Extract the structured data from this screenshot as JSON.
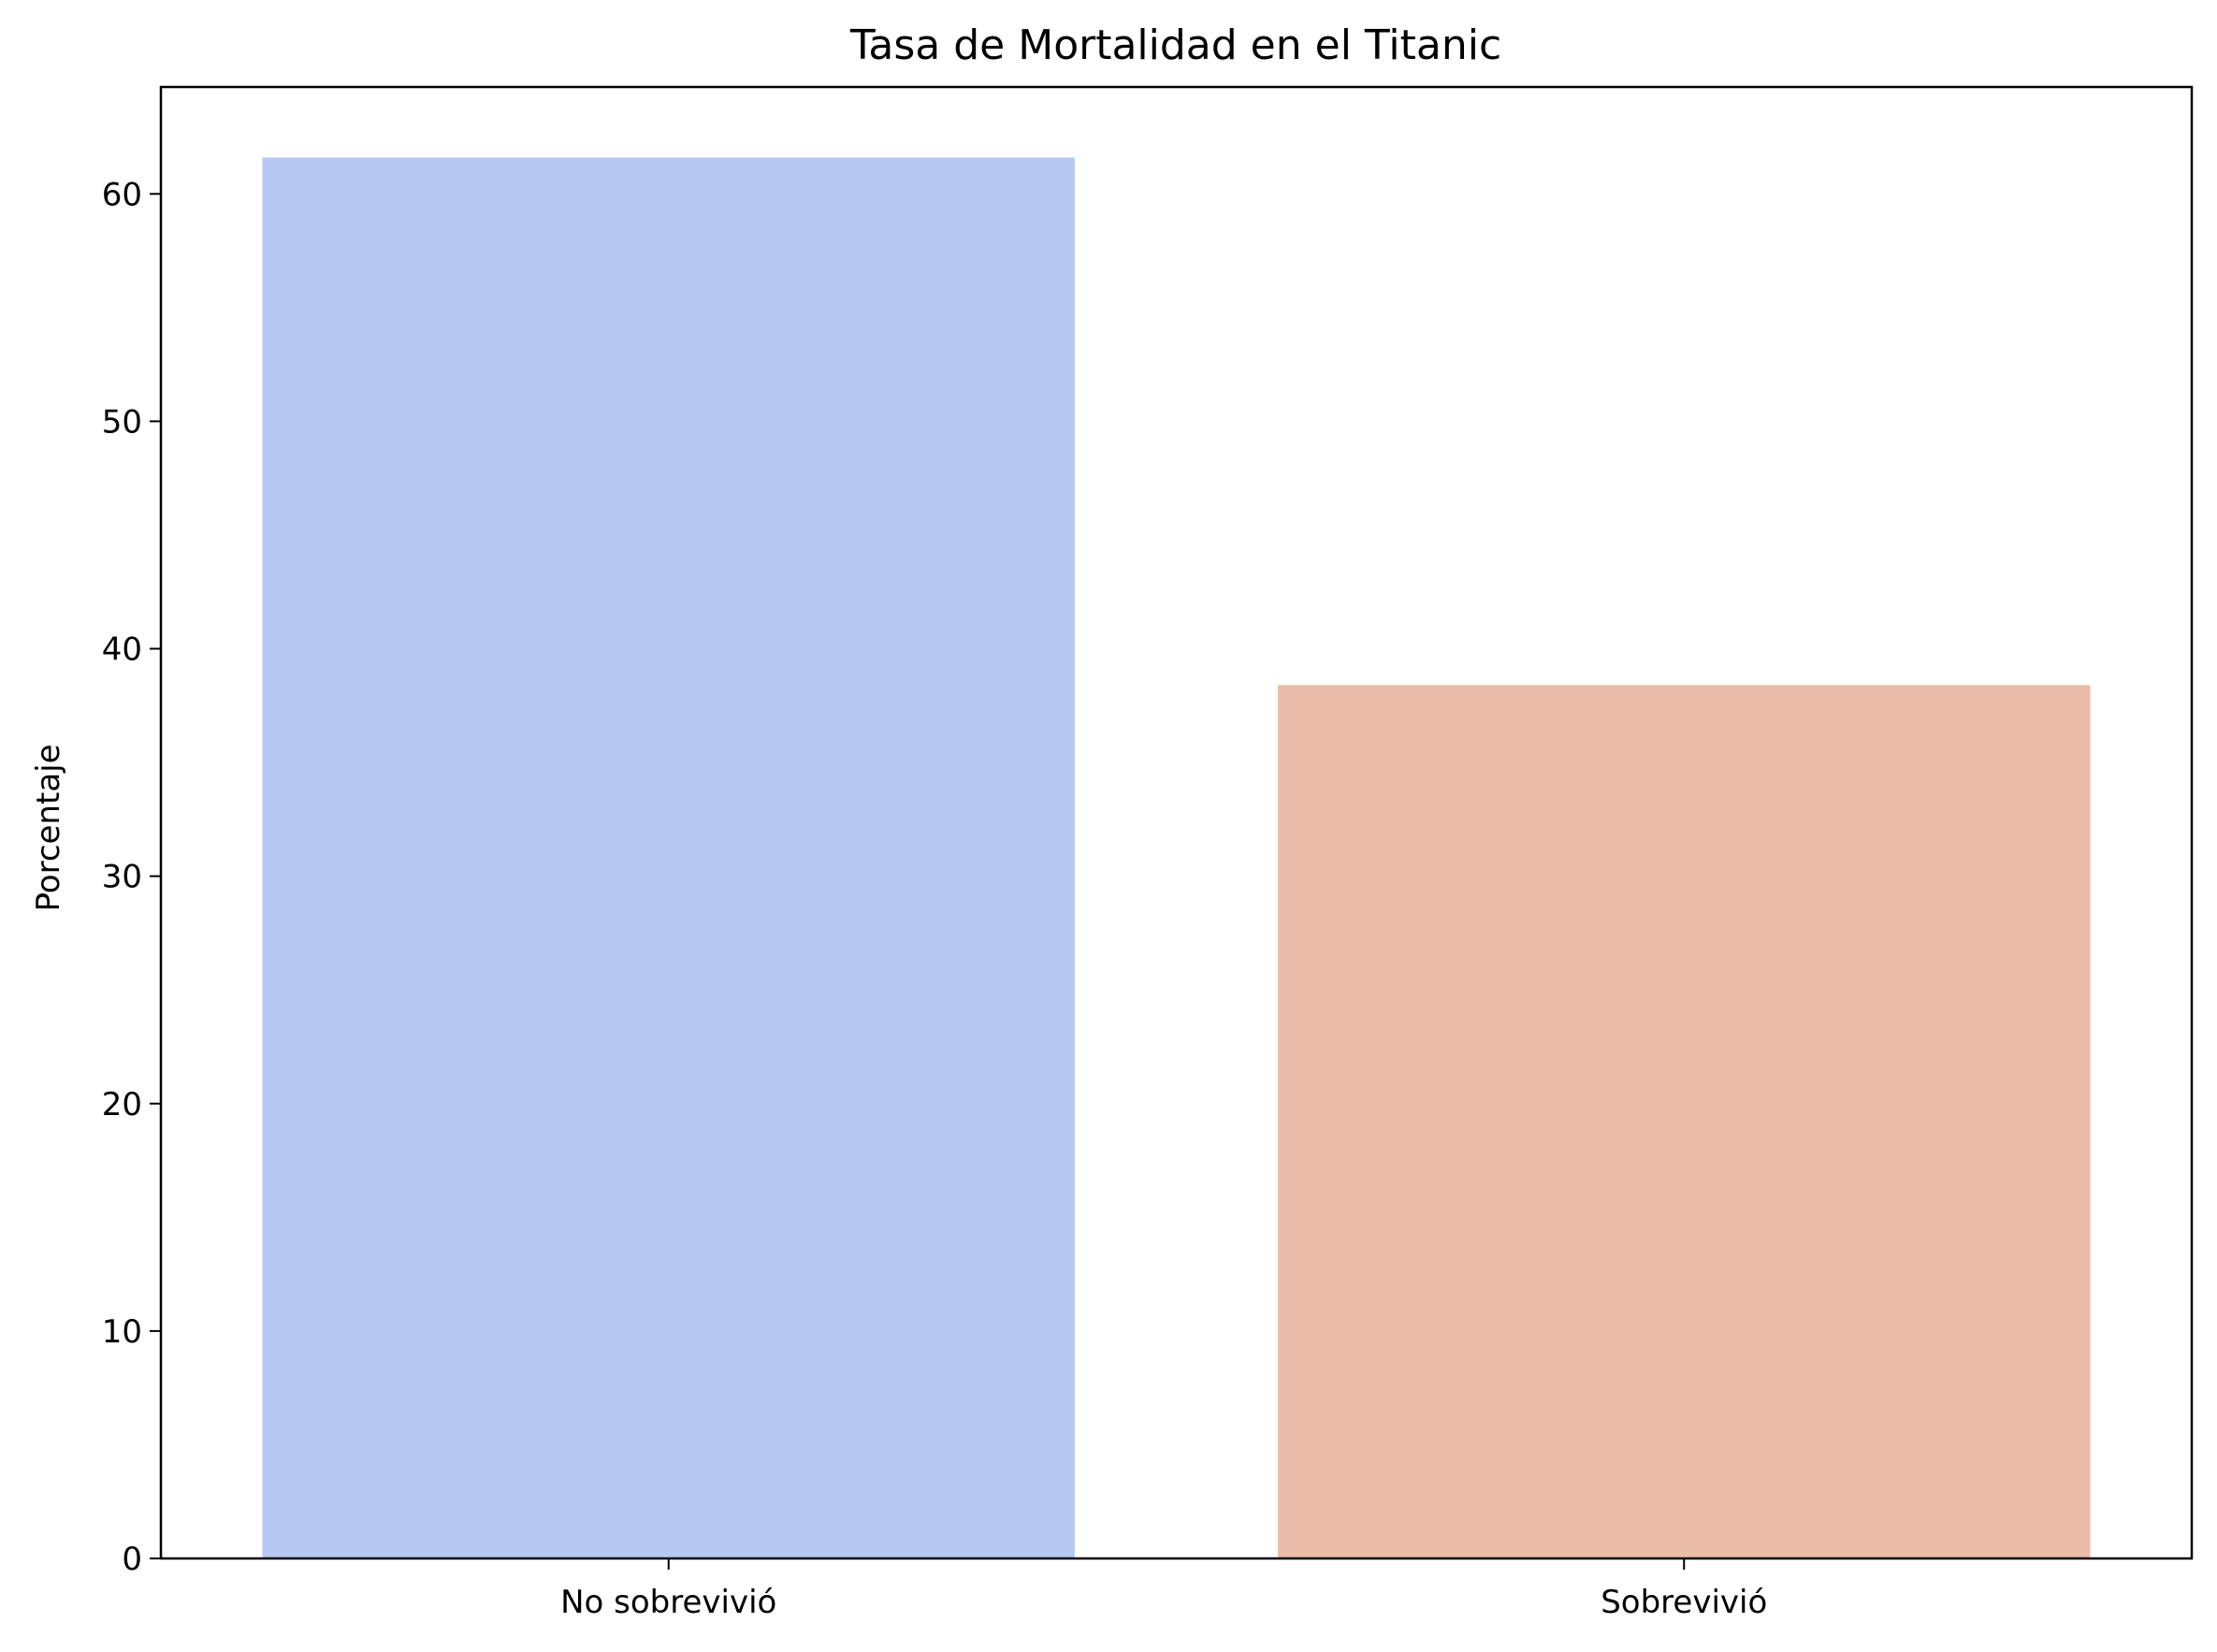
{
  "chart_data": {
    "type": "bar",
    "title": "Tasa de Mortalidad en el Titanic",
    "xlabel": "",
    "ylabel": "Porcentaje",
    "categories": [
      "No sobrevivió",
      "Sobrevivió"
    ],
    "values": [
      61.6,
      38.4
    ],
    "colors": [
      "#b5c9f2",
      "#ebbca7"
    ],
    "ylim": [
      0,
      64.7
    ],
    "yticks": [
      0,
      10,
      20,
      30,
      40,
      50,
      60
    ],
    "grid": false
  }
}
